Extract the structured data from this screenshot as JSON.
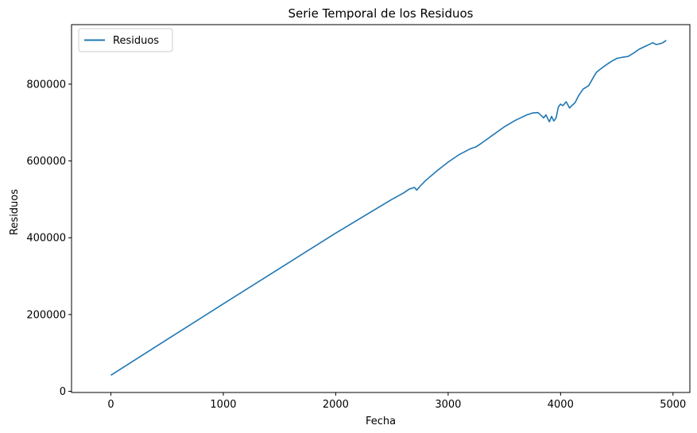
{
  "chart_data": {
    "type": "line",
    "title": "Serie Temporal de los Residuos",
    "xlabel": "Fecha",
    "ylabel": "Residuos",
    "xlim": [
      -350,
      5150
    ],
    "ylim": [
      -3000,
      955000
    ],
    "xticks": [
      0,
      1000,
      2000,
      3000,
      4000,
      5000
    ],
    "yticks": [
      0,
      200000,
      400000,
      600000,
      800000
    ],
    "grid": false,
    "legend": "upper-left",
    "color": "#1f77b4",
    "series": [
      {
        "name": "Residuos",
        "x": [
          0,
          500,
          1000,
          1500,
          2000,
          2500,
          2600,
          2650,
          2700,
          2720,
          2750,
          2800,
          2900,
          3000,
          3100,
          3200,
          3250,
          3300,
          3400,
          3500,
          3600,
          3700,
          3750,
          3800,
          3850,
          3870,
          3900,
          3920,
          3940,
          3960,
          3980,
          4000,
          4020,
          4050,
          4080,
          4100,
          4130,
          4160,
          4200,
          4250,
          4300,
          4320,
          4350,
          4400,
          4450,
          4500,
          4550,
          4600,
          4650,
          4700,
          4750,
          4800,
          4820,
          4850,
          4880,
          4910,
          4940
        ],
        "y": [
          42000,
          135000,
          228000,
          320000,
          412000,
          500000,
          516000,
          526000,
          531000,
          524000,
          534000,
          549000,
          574000,
          597000,
          617000,
          632000,
          637000,
          647000,
          668000,
          689000,
          706000,
          720000,
          725000,
          726000,
          712000,
          720000,
          702000,
          716000,
          704000,
          712000,
          740000,
          748000,
          744000,
          754000,
          738000,
          744000,
          752000,
          770000,
          787000,
          796000,
          822000,
          831000,
          838000,
          849000,
          859000,
          867000,
          870000,
          872000,
          881000,
          891000,
          898000,
          905000,
          908000,
          903000,
          905000,
          908000,
          914000
        ]
      }
    ]
  }
}
